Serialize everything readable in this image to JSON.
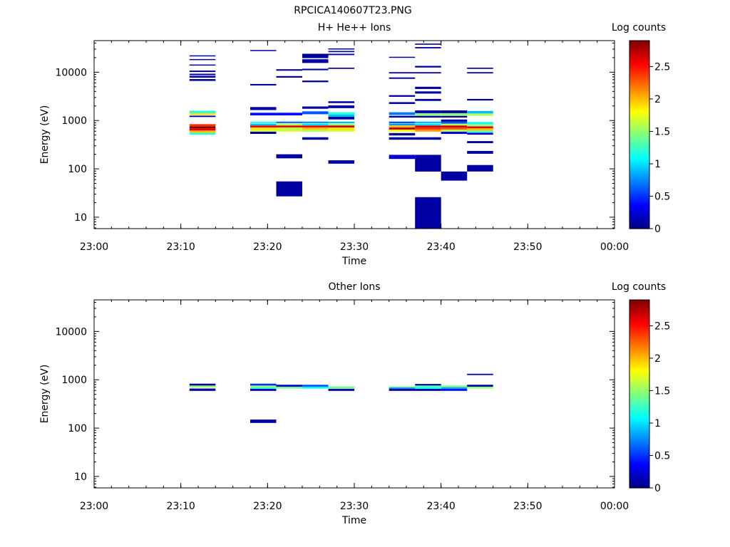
{
  "figure_title": "RPCICA140607T23.PNG",
  "colorbar": {
    "label": "Log counts",
    "ticks": [
      "0",
      "0.5",
      "1",
      "1.5",
      "2",
      "2.5"
    ],
    "tick_values": [
      0,
      0.5,
      1,
      1.5,
      2,
      2.5
    ],
    "range": [
      0,
      2.9
    ],
    "colormap": "jet"
  },
  "chart_data": [
    {
      "type": "heatmap",
      "title": "H+ He++ Ions",
      "xlabel": "Time",
      "ylabel": "Energy (eV)",
      "yscale": "log",
      "xlim": [
        "23:00",
        "00:00"
      ],
      "ylim": [
        5.8,
        45000
      ],
      "x_ticks": [
        "23:00",
        "23:10",
        "23:20",
        "23:30",
        "23:40",
        "23:50",
        "00:00"
      ],
      "y_ticks": [
        "10",
        "100",
        "1000",
        "10000"
      ],
      "time_bins": [
        {
          "start": "23:11",
          "end": "23:14",
          "cells": [
            {
              "e_lo": 510,
              "e_hi": 560,
              "v": 1.2
            },
            {
              "e_lo": 560,
              "e_hi": 620,
              "v": 2.0
            },
            {
              "e_lo": 620,
              "e_hi": 690,
              "v": 2.6
            },
            {
              "e_lo": 690,
              "e_hi": 760,
              "v": 2.9
            },
            {
              "e_lo": 760,
              "e_hi": 840,
              "v": 2.4
            },
            {
              "e_lo": 1180,
              "e_hi": 1260,
              "v": 0.1
            },
            {
              "e_lo": 1300,
              "e_hi": 1420,
              "v": 1.9
            },
            {
              "e_lo": 1420,
              "e_hi": 1600,
              "v": 1.2
            },
            {
              "e_lo": 6600,
              "e_hi": 7200,
              "v": 0.1
            },
            {
              "e_lo": 7700,
              "e_hi": 8400,
              "v": 0.1
            },
            {
              "e_lo": 8700,
              "e_hi": 9300,
              "v": 0.1
            },
            {
              "e_lo": 10100,
              "e_hi": 10800,
              "v": 0.1
            },
            {
              "e_lo": 13700,
              "e_hi": 14400,
              "v": 0.1
            },
            {
              "e_lo": 17800,
              "e_hi": 18700,
              "v": 0.1
            },
            {
              "e_lo": 21200,
              "e_hi": 22300,
              "v": 0.1
            }
          ]
        },
        {
          "start": "23:18",
          "end": "23:21",
          "cells": [
            {
              "e_lo": 530,
              "e_hi": 590,
              "v": 0.1
            },
            {
              "e_lo": 590,
              "e_hi": 650,
              "v": 1.7
            },
            {
              "e_lo": 650,
              "e_hi": 720,
              "v": 1.9
            },
            {
              "e_lo": 720,
              "e_hi": 790,
              "v": 2.6
            },
            {
              "e_lo": 790,
              "e_hi": 860,
              "v": 0.9
            },
            {
              "e_lo": 880,
              "e_hi": 950,
              "v": 1.2
            },
            {
              "e_lo": 1280,
              "e_hi": 1450,
              "v": 0.4
            },
            {
              "e_lo": 1650,
              "e_hi": 1900,
              "v": 0.1
            },
            {
              "e_lo": 5300,
              "e_hi": 5700,
              "v": 0.1
            },
            {
              "e_lo": 27500,
              "e_hi": 28800,
              "v": 0.1
            }
          ]
        },
        {
          "start": "23:21",
          "end": "23:24",
          "cells": [
            {
              "e_lo": 27,
              "e_hi": 55,
              "v": 0.1
            },
            {
              "e_lo": 165,
              "e_hi": 200,
              "v": 0.1
            },
            {
              "e_lo": 590,
              "e_hi": 650,
              "v": 1.7
            },
            {
              "e_lo": 650,
              "e_hi": 720,
              "v": 1.6
            },
            {
              "e_lo": 720,
              "e_hi": 790,
              "v": 2.6
            },
            {
              "e_lo": 790,
              "e_hi": 860,
              "v": 1.6
            },
            {
              "e_lo": 880,
              "e_hi": 950,
              "v": 0.7
            },
            {
              "e_lo": 1280,
              "e_hi": 1450,
              "v": 0.4
            },
            {
              "e_lo": 7700,
              "e_hi": 8300,
              "v": 0.1
            },
            {
              "e_lo": 10700,
              "e_hi": 11500,
              "v": 0.1
            }
          ]
        },
        {
          "start": "23:24",
          "end": "23:27",
          "cells": [
            {
              "e_lo": 400,
              "e_hi": 450,
              "v": 0.1
            },
            {
              "e_lo": 590,
              "e_hi": 650,
              "v": 1.6
            },
            {
              "e_lo": 650,
              "e_hi": 720,
              "v": 2.0
            },
            {
              "e_lo": 720,
              "e_hi": 790,
              "v": 2.6
            },
            {
              "e_lo": 790,
              "e_hi": 860,
              "v": 1.0
            },
            {
              "e_lo": 880,
              "e_hi": 950,
              "v": 0.8
            },
            {
              "e_lo": 1350,
              "e_hi": 1550,
              "v": 0.6
            },
            {
              "e_lo": 1750,
              "e_hi": 1950,
              "v": 0.1
            },
            {
              "e_lo": 6200,
              "e_hi": 6700,
              "v": 0.1
            },
            {
              "e_lo": 11000,
              "e_hi": 11800,
              "v": 0.1
            },
            {
              "e_lo": 15500,
              "e_hi": 18500,
              "v": 0.1
            },
            {
              "e_lo": 19500,
              "e_hi": 24000,
              "v": 0.1
            }
          ]
        },
        {
          "start": "23:27",
          "end": "23:30",
          "cells": [
            {
              "e_lo": 128,
              "e_hi": 150,
              "v": 0.1
            },
            {
              "e_lo": 590,
              "e_hi": 650,
              "v": 1.7
            },
            {
              "e_lo": 650,
              "e_hi": 720,
              "v": 1.9
            },
            {
              "e_lo": 720,
              "e_hi": 790,
              "v": 2.7
            },
            {
              "e_lo": 790,
              "e_hi": 860,
              "v": 1.5
            },
            {
              "e_lo": 880,
              "e_hi": 950,
              "v": 0.9
            },
            {
              "e_lo": 1050,
              "e_hi": 1200,
              "v": 0.1
            },
            {
              "e_lo": 1200,
              "e_hi": 1320,
              "v": 0.9
            },
            {
              "e_lo": 1320,
              "e_hi": 1480,
              "v": 1.2
            },
            {
              "e_lo": 1800,
              "e_hi": 2050,
              "v": 0.1
            },
            {
              "e_lo": 2300,
              "e_hi": 2500,
              "v": 0.1
            },
            {
              "e_lo": 11700,
              "e_hi": 12400,
              "v": 0.1
            },
            {
              "e_lo": 22500,
              "e_hi": 24000,
              "v": 0.1
            },
            {
              "e_lo": 26000,
              "e_hi": 27500,
              "v": 0.1
            },
            {
              "e_lo": 29500,
              "e_hi": 31000,
              "v": 0.1
            }
          ]
        },
        {
          "start": "23:34",
          "end": "23:37",
          "cells": [
            {
              "e_lo": 160,
              "e_hi": 195,
              "v": 0.25
            },
            {
              "e_lo": 400,
              "e_hi": 450,
              "v": 0.1
            },
            {
              "e_lo": 490,
              "e_hi": 550,
              "v": 0.05
            },
            {
              "e_lo": 590,
              "e_hi": 650,
              "v": 1.8
            },
            {
              "e_lo": 650,
              "e_hi": 720,
              "v": 2.7
            },
            {
              "e_lo": 720,
              "e_hi": 790,
              "v": 2.0
            },
            {
              "e_lo": 790,
              "e_hi": 860,
              "v": 0.8
            },
            {
              "e_lo": 880,
              "e_hi": 950,
              "v": 0.6
            },
            {
              "e_lo": 1150,
              "e_hi": 1250,
              "v": 0.1
            },
            {
              "e_lo": 1300,
              "e_hi": 1480,
              "v": 0.7
            },
            {
              "e_lo": 2200,
              "e_hi": 2400,
              "v": 0.1
            },
            {
              "e_lo": 3100,
              "e_hi": 3350,
              "v": 0.1
            },
            {
              "e_lo": 7300,
              "e_hi": 7800,
              "v": 0.1
            },
            {
              "e_lo": 9400,
              "e_hi": 10000,
              "v": 0.1
            },
            {
              "e_lo": 19800,
              "e_hi": 20800,
              "v": 0.1
            }
          ]
        },
        {
          "start": "23:37",
          "end": "23:40",
          "cells": [
            {
              "e_lo": 5.8,
              "e_hi": 26,
              "v": 0.1
            },
            {
              "e_lo": 88,
              "e_hi": 195,
              "v": 0.1
            },
            {
              "e_lo": 400,
              "e_hi": 450,
              "v": 0.1
            },
            {
              "e_lo": 590,
              "e_hi": 650,
              "v": 2.1
            },
            {
              "e_lo": 650,
              "e_hi": 720,
              "v": 2.4
            },
            {
              "e_lo": 720,
              "e_hi": 790,
              "v": 2.7
            },
            {
              "e_lo": 790,
              "e_hi": 860,
              "v": 1.0
            },
            {
              "e_lo": 880,
              "e_hi": 950,
              "v": 0.9
            },
            {
              "e_lo": 1150,
              "e_hi": 1250,
              "v": 0.1
            },
            {
              "e_lo": 1250,
              "e_hi": 1420,
              "v": 1.5
            },
            {
              "e_lo": 1420,
              "e_hi": 1620,
              "v": 0.2
            },
            {
              "e_lo": 2550,
              "e_hi": 2800,
              "v": 0.1
            },
            {
              "e_lo": 3600,
              "e_hi": 4000,
              "v": 0.1
            },
            {
              "e_lo": 4500,
              "e_hi": 5000,
              "v": 0.1
            },
            {
              "e_lo": 9400,
              "e_hi": 10000,
              "v": 0.1
            },
            {
              "e_lo": 12500,
              "e_hi": 13500,
              "v": 0.1
            },
            {
              "e_lo": 31000,
              "e_hi": 33000,
              "v": 0.1
            },
            {
              "e_lo": 37000,
              "e_hi": 39000,
              "v": 0.1
            }
          ]
        },
        {
          "start": "23:40",
          "end": "23:43",
          "cells": [
            {
              "e_lo": 57,
              "e_hi": 88,
              "v": 0.1
            },
            {
              "e_lo": 530,
              "e_hi": 590,
              "v": 0.3
            },
            {
              "e_lo": 590,
              "e_hi": 650,
              "v": 1.6
            },
            {
              "e_lo": 650,
              "e_hi": 720,
              "v": 2.3
            },
            {
              "e_lo": 720,
              "e_hi": 790,
              "v": 2.7
            },
            {
              "e_lo": 790,
              "e_hi": 860,
              "v": 1.6
            },
            {
              "e_lo": 860,
              "e_hi": 950,
              "v": 0.6
            },
            {
              "e_lo": 950,
              "e_hi": 1050,
              "v": 0.1
            },
            {
              "e_lo": 1150,
              "e_hi": 1250,
              "v": 0.1
            },
            {
              "e_lo": 1250,
              "e_hi": 1420,
              "v": 1.5
            },
            {
              "e_lo": 1420,
              "e_hi": 1620,
              "v": 0.1
            }
          ]
        },
        {
          "start": "23:43",
          "end": "23:46",
          "cells": [
            {
              "e_lo": 88,
              "e_hi": 120,
              "v": 0.1
            },
            {
              "e_lo": 205,
              "e_hi": 235,
              "v": 0.1
            },
            {
              "e_lo": 340,
              "e_hi": 375,
              "v": 0.1
            },
            {
              "e_lo": 510,
              "e_hi": 560,
              "v": 0.3
            },
            {
              "e_lo": 560,
              "e_hi": 620,
              "v": 1.3
            },
            {
              "e_lo": 620,
              "e_hi": 690,
              "v": 2.0
            },
            {
              "e_lo": 690,
              "e_hi": 760,
              "v": 2.6
            },
            {
              "e_lo": 760,
              "e_hi": 840,
              "v": 1.5
            },
            {
              "e_lo": 840,
              "e_hi": 930,
              "v": 1.1
            },
            {
              "e_lo": 1250,
              "e_hi": 1400,
              "v": 1.6
            },
            {
              "e_lo": 1400,
              "e_hi": 1580,
              "v": 0.9
            },
            {
              "e_lo": 2600,
              "e_hi": 2800,
              "v": 0.1
            },
            {
              "e_lo": 9400,
              "e_hi": 10000,
              "v": 0.1
            },
            {
              "e_lo": 11700,
              "e_hi": 12400,
              "v": 0.1
            }
          ]
        }
      ]
    },
    {
      "type": "heatmap",
      "title": "Other Ions",
      "xlabel": "Time",
      "ylabel": "Energy (eV)",
      "yscale": "log",
      "xlim": [
        "23:00",
        "00:00"
      ],
      "ylim": [
        5.8,
        45000
      ],
      "x_ticks": [
        "23:00",
        "23:10",
        "23:20",
        "23:30",
        "23:40",
        "23:50",
        "00:00"
      ],
      "y_ticks": [
        "10",
        "100",
        "1000",
        "10000"
      ],
      "time_bins": [
        {
          "start": "23:11",
          "end": "23:14",
          "cells": [
            {
              "e_lo": 590,
              "e_hi": 660,
              "v": 0.1
            },
            {
              "e_lo": 690,
              "e_hi": 760,
              "v": 1.5
            },
            {
              "e_lo": 760,
              "e_hi": 830,
              "v": 0.1
            }
          ]
        },
        {
          "start": "23:18",
          "end": "23:21",
          "cells": [
            {
              "e_lo": 128,
              "e_hi": 150,
              "v": 0.1
            },
            {
              "e_lo": 590,
              "e_hi": 650,
              "v": 0.15
            },
            {
              "e_lo": 650,
              "e_hi": 700,
              "v": 1.2
            },
            {
              "e_lo": 700,
              "e_hi": 760,
              "v": 1.5
            },
            {
              "e_lo": 760,
              "e_hi": 830,
              "v": 0.5
            }
          ]
        },
        {
          "start": "23:21",
          "end": "23:24",
          "cells": [
            {
              "e_lo": 660,
              "e_hi": 720,
              "v": 1.4
            },
            {
              "e_lo": 720,
              "e_hi": 790,
              "v": 0.2
            }
          ]
        },
        {
          "start": "23:24",
          "end": "23:27",
          "cells": [
            {
              "e_lo": 660,
              "e_hi": 720,
              "v": 1.1
            },
            {
              "e_lo": 720,
              "e_hi": 790,
              "v": 0.6
            }
          ]
        },
        {
          "start": "23:27",
          "end": "23:30",
          "cells": [
            {
              "e_lo": 590,
              "e_hi": 650,
              "v": 0.1
            },
            {
              "e_lo": 660,
              "e_hi": 730,
              "v": 1.4
            }
          ]
        },
        {
          "start": "23:34",
          "end": "23:37",
          "cells": [
            {
              "e_lo": 590,
              "e_hi": 650,
              "v": 0.1
            },
            {
              "e_lo": 650,
              "e_hi": 690,
              "v": 0.7
            },
            {
              "e_lo": 690,
              "e_hi": 730,
              "v": 1.4
            }
          ]
        },
        {
          "start": "23:37",
          "end": "23:40",
          "cells": [
            {
              "e_lo": 590,
              "e_hi": 650,
              "v": 0.1
            },
            {
              "e_lo": 650,
              "e_hi": 700,
              "v": 1.1
            },
            {
              "e_lo": 700,
              "e_hi": 760,
              "v": 1.3
            },
            {
              "e_lo": 760,
              "e_hi": 820,
              "v": 0.1
            }
          ]
        },
        {
          "start": "23:40",
          "end": "23:43",
          "cells": [
            {
              "e_lo": 590,
              "e_hi": 650,
              "v": 0.4
            },
            {
              "e_lo": 650,
              "e_hi": 700,
              "v": 0.8
            },
            {
              "e_lo": 700,
              "e_hi": 760,
              "v": 1.4
            }
          ]
        },
        {
          "start": "23:43",
          "end": "23:46",
          "cells": [
            {
              "e_lo": 660,
              "e_hi": 720,
              "v": 1.5
            },
            {
              "e_lo": 720,
              "e_hi": 790,
              "v": 0.1
            },
            {
              "e_lo": 1250,
              "e_hi": 1330,
              "v": 0.1
            }
          ]
        }
      ]
    }
  ]
}
